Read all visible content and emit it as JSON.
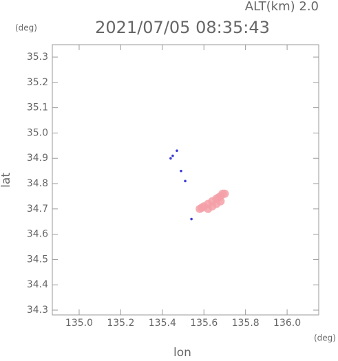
{
  "chart_data": {
    "type": "scatter",
    "title": "2021/07/05 08:35:43",
    "annotation": "ALT(km) 2.0",
    "x_label": "lon",
    "y_label": "lat",
    "x_unit": "(deg)",
    "y_unit": "(deg)",
    "xlim": [
      134.871,
      136.152
    ],
    "ylim": [
      34.281,
      35.349
    ],
    "xticks": [
      {
        "value": 135.0,
        "label": "135.0"
      },
      135.2,
      135.4,
      135.6,
      135.8,
      {
        "value": 136.0,
        "label": "136.0"
      }
    ],
    "yticks": [
      35.3,
      35.2,
      35.1,
      {
        "value": 35.0,
        "label": "35.0"
      },
      34.9,
      34.8,
      34.7,
      34.6,
      34.5,
      34.4,
      34.3
    ],
    "series": [
      {
        "color": "#f4a0a8",
        "x": [
          135.58,
          135.6,
          135.62,
          135.64,
          135.66,
          135.68,
          135.69,
          135.7,
          135.62,
          135.66,
          135.68,
          135.64,
          135.67,
          135.59
        ],
        "y": [
          34.7,
          34.71,
          34.72,
          34.73,
          34.74,
          34.75,
          34.76,
          34.76,
          34.7,
          34.72,
          34.73,
          34.71,
          34.745,
          34.705
        ]
      },
      {
        "color": "#3b3bd6",
        "x": [
          135.44,
          135.45,
          135.47,
          135.51,
          135.54,
          135.49
        ],
        "y": [
          34.9,
          34.91,
          34.93,
          34.81,
          34.66,
          34.85
        ]
      }
    ]
  }
}
